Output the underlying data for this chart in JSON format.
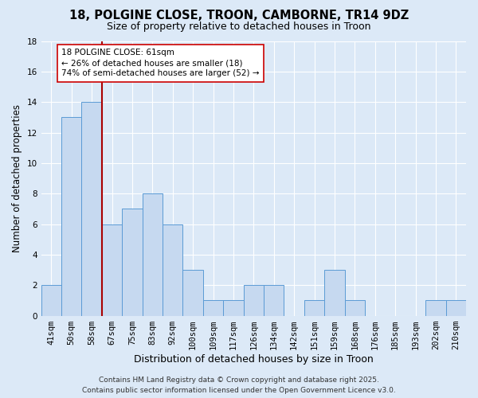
{
  "title": "18, POLGINE CLOSE, TROON, CAMBORNE, TR14 9DZ",
  "subtitle": "Size of property relative to detached houses in Troon",
  "xlabel": "Distribution of detached houses by size in Troon",
  "ylabel": "Number of detached properties",
  "categories": [
    "41sqm",
    "50sqm",
    "58sqm",
    "67sqm",
    "75sqm",
    "83sqm",
    "92sqm",
    "100sqm",
    "109sqm",
    "117sqm",
    "126sqm",
    "134sqm",
    "142sqm",
    "151sqm",
    "159sqm",
    "168sqm",
    "176sqm",
    "185sqm",
    "193sqm",
    "202sqm",
    "210sqm"
  ],
  "values": [
    2,
    13,
    14,
    6,
    7,
    8,
    6,
    3,
    1,
    1,
    2,
    2,
    0,
    1,
    3,
    1,
    0,
    0,
    0,
    1,
    1
  ],
  "bar_color": "#c6d9f0",
  "bar_edge_color": "#5b9bd5",
  "vline_x_index": 2,
  "vline_color": "#aa0000",
  "annotation_text": "18 POLGINE CLOSE: 61sqm\n← 26% of detached houses are smaller (18)\n74% of semi-detached houses are larger (52) →",
  "annotation_box_color": "#ffffff",
  "annotation_box_edge": "#cc0000",
  "ylim": [
    0,
    18
  ],
  "yticks": [
    0,
    2,
    4,
    6,
    8,
    10,
    12,
    14,
    16,
    18
  ],
  "background_color": "#dce9f7",
  "grid_color": "#ffffff",
  "footer_line1": "Contains HM Land Registry data © Crown copyright and database right 2025.",
  "footer_line2": "Contains public sector information licensed under the Open Government Licence v3.0.",
  "title_fontsize": 10.5,
  "subtitle_fontsize": 9,
  "xlabel_fontsize": 9,
  "ylabel_fontsize": 8.5,
  "tick_fontsize": 7.5,
  "footer_fontsize": 6.5,
  "annotation_fontsize": 7.5
}
